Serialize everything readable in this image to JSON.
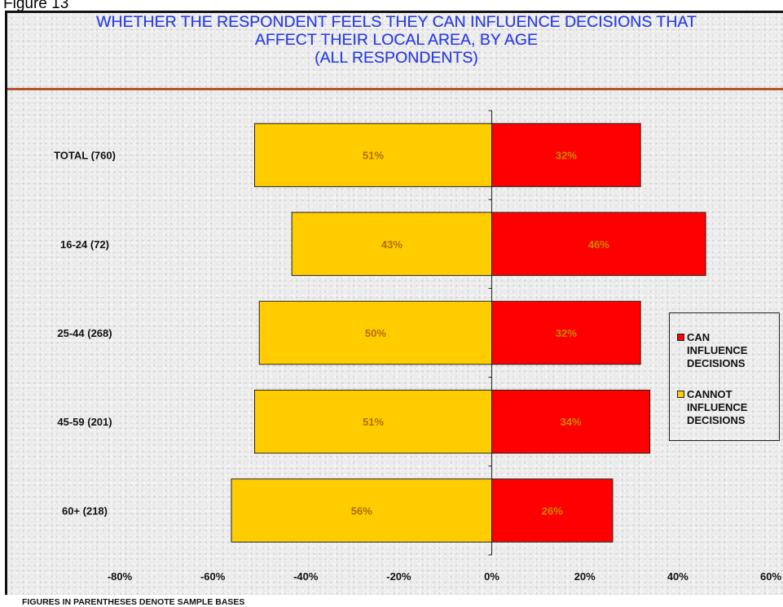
{
  "figure_label": "Figure 13",
  "title_lines": [
    "WHETHER THE RESPONDENT FEELS THEY CAN INFLUENCE DECISIONS THAT",
    "AFFECT THEIR LOCAL AREA, BY AGE",
    "(ALL RESPONDENTS)"
  ],
  "footnote": "FIGURES IN PARENTHESES DENOTE SAMPLE BASES",
  "colors": {
    "cannot": "#ffcc00",
    "can": "#ff0000",
    "title": "#2b3fe0",
    "rule": "#b5542c"
  },
  "legend": [
    {
      "key": "can",
      "lines": [
        "CAN",
        "INFLUENCE",
        "DECISIONS"
      ]
    },
    {
      "key": "cannot",
      "lines": [
        "CANNOT",
        "INFLUENCE",
        "DECISIONS"
      ]
    }
  ],
  "chart_data": {
    "type": "bar",
    "orientation": "horizontal",
    "stacking": "diverging",
    "categories": [
      "TOTAL (760)",
      "16-24 (72)",
      "25-44 (268)",
      "45-59 (201)",
      "60+ (218)"
    ],
    "series": [
      {
        "name": "CANNOT INFLUENCE DECISIONS",
        "key": "cannot",
        "values": [
          -51,
          -43,
          -50,
          -51,
          -56
        ],
        "labels": [
          "51%",
          "43%",
          "50%",
          "51%",
          "56%"
        ]
      },
      {
        "name": "CAN INFLUENCE DECISIONS",
        "key": "can",
        "values": [
          32,
          46,
          32,
          34,
          26
        ],
        "labels": [
          "32%",
          "46%",
          "32%",
          "34%",
          "26%"
        ]
      }
    ],
    "xlim": [
      -80,
      60
    ],
    "xticks": [
      -80,
      -60,
      -40,
      -20,
      0,
      20,
      40,
      60
    ],
    "xtick_labels": [
      "-80%",
      "-60%",
      "-40%",
      "-20%",
      "0%",
      "20%",
      "40%",
      "60%"
    ],
    "legend_position": "right",
    "grid": false
  }
}
